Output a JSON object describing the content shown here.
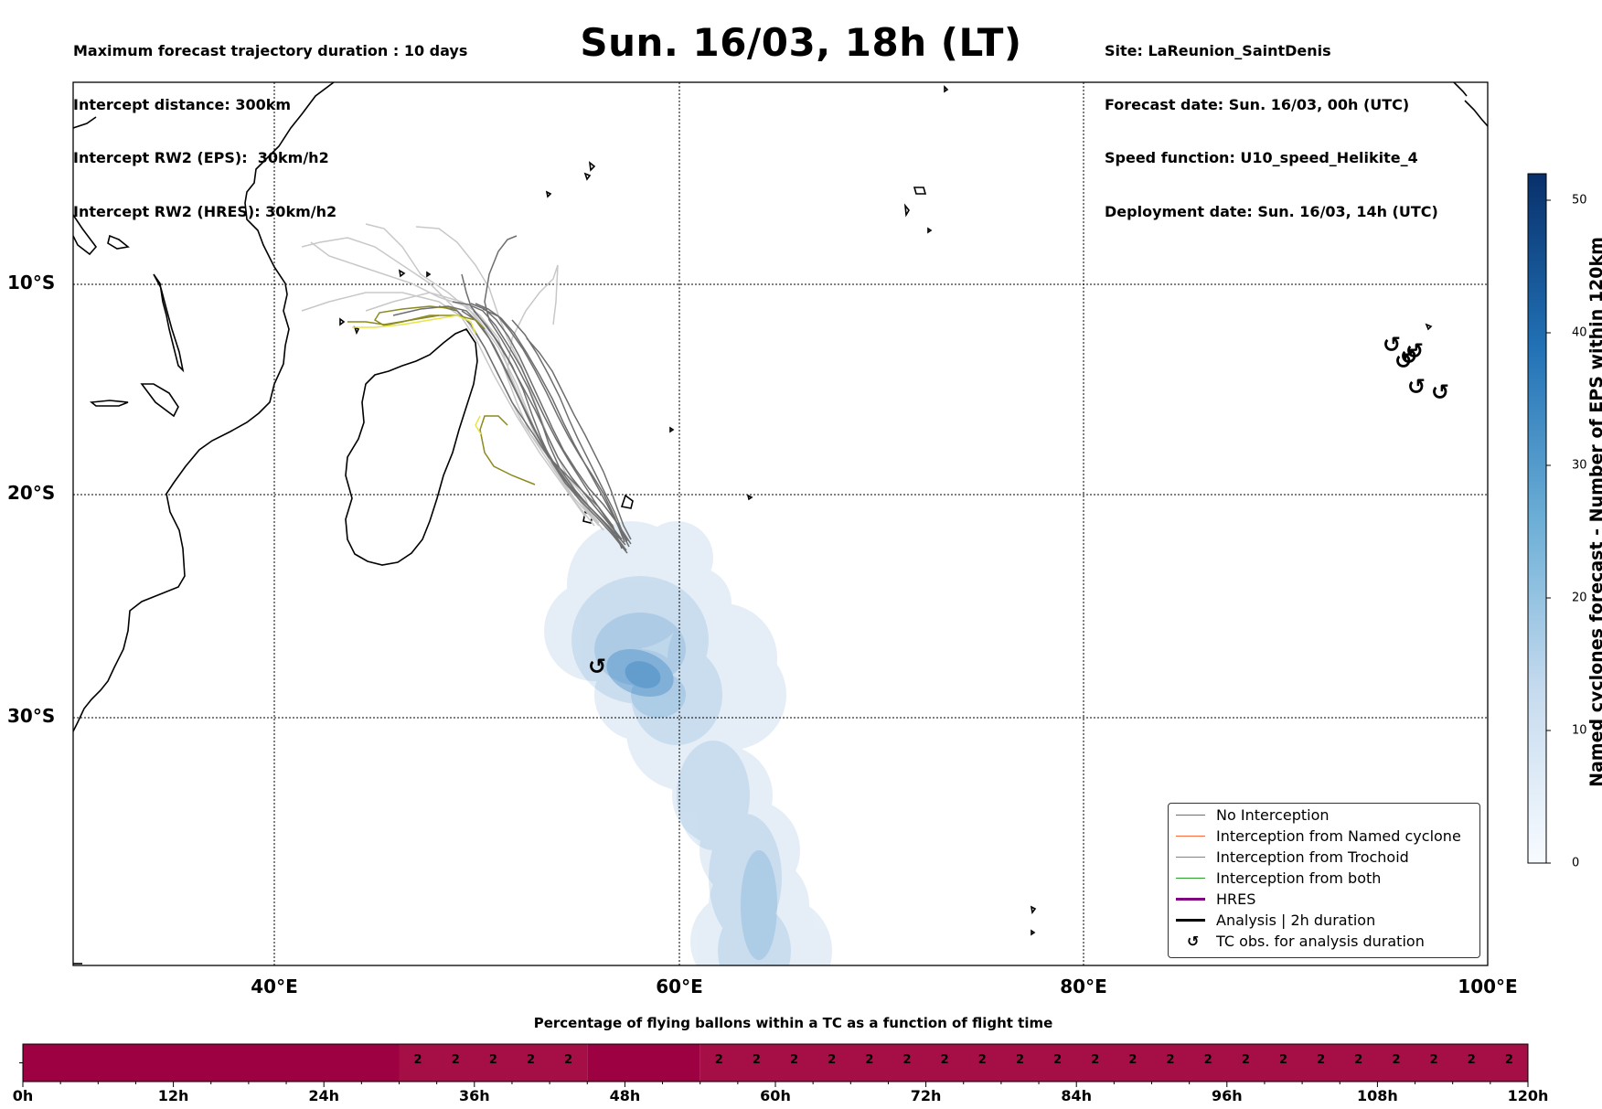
{
  "header_left": [
    "Maximum forecast trajectory duration : 10 days",
    "Intercept distance: 300km",
    "Intercept RW2 (EPS):  30km/h2",
    "Intercept RW2 (HRES): 30km/h2"
  ],
  "title": "Sun. 16/03, 18h (LT)",
  "header_right": [
    "Site: LaReunion_SaintDenis",
    "Forecast date: Sun. 16/03, 00h (UTC)",
    "Speed function: U10_speed_Helikite_4",
    "Deployment date: Sun. 16/03, 14h (UTC)"
  ],
  "map": {
    "lat_labels": [
      "10°S",
      "20°S",
      "30°S"
    ],
    "lon_labels": [
      "40°E",
      "60°E",
      "80°E",
      "100°E"
    ],
    "trajectory_color": "#6e6e6e",
    "trochoid_color": "#8a8a1e",
    "density_color": "#2f7dbf"
  },
  "legend": {
    "items": [
      {
        "label": "No Interception",
        "color": "#6e6e6e",
        "style": "line"
      },
      {
        "label": "Interception from Named cyclone",
        "color": "#ff6a3a",
        "style": "line"
      },
      {
        "label": "Interception from Trochoid",
        "color": "#8f8f1f",
        "style": "line"
      },
      {
        "label": "Interception from both",
        "color": "#2ca02c",
        "style": "line"
      },
      {
        "label": "HRES",
        "color": "#800080",
        "style": "thick"
      },
      {
        "label": "Analysis | 2h duration",
        "color": "#000000",
        "style": "thick"
      },
      {
        "label": "TC obs. for analysis duration",
        "color": "#000000",
        "style": "symbol"
      }
    ]
  },
  "colorbar": {
    "label": "Named cyclones forecast - Number of EPS within 120km",
    "ticks": [
      "0",
      "10",
      "20",
      "30",
      "40",
      "50"
    ],
    "max": 52
  },
  "timeline": {
    "title": "Percentage of flying ballons within a TC as a function of flight time",
    "tick_labels": [
      "0h",
      "12h",
      "24h",
      "36h",
      "48h",
      "60h",
      "72h",
      "84h",
      "96h",
      "108h",
      "120h"
    ],
    "max_hours": 120,
    "segments": [
      {
        "start": 0,
        "end": 30,
        "color": "#9e0142",
        "values": []
      },
      {
        "start": 30,
        "end": 45,
        "color": "#a50f45",
        "values": [
          "2",
          "2",
          "2",
          "2",
          "2"
        ]
      },
      {
        "start": 45,
        "end": 54,
        "color": "#9e0142",
        "values": []
      },
      {
        "start": 54,
        "end": 120,
        "color": "#a50f45",
        "values": [
          "2",
          "2",
          "2",
          "2",
          "2",
          "2",
          "2",
          "2",
          "2",
          "2",
          "2",
          "2",
          "2",
          "2",
          "2",
          "2",
          "2",
          "2",
          "2",
          "2",
          "2",
          "2"
        ]
      }
    ]
  }
}
